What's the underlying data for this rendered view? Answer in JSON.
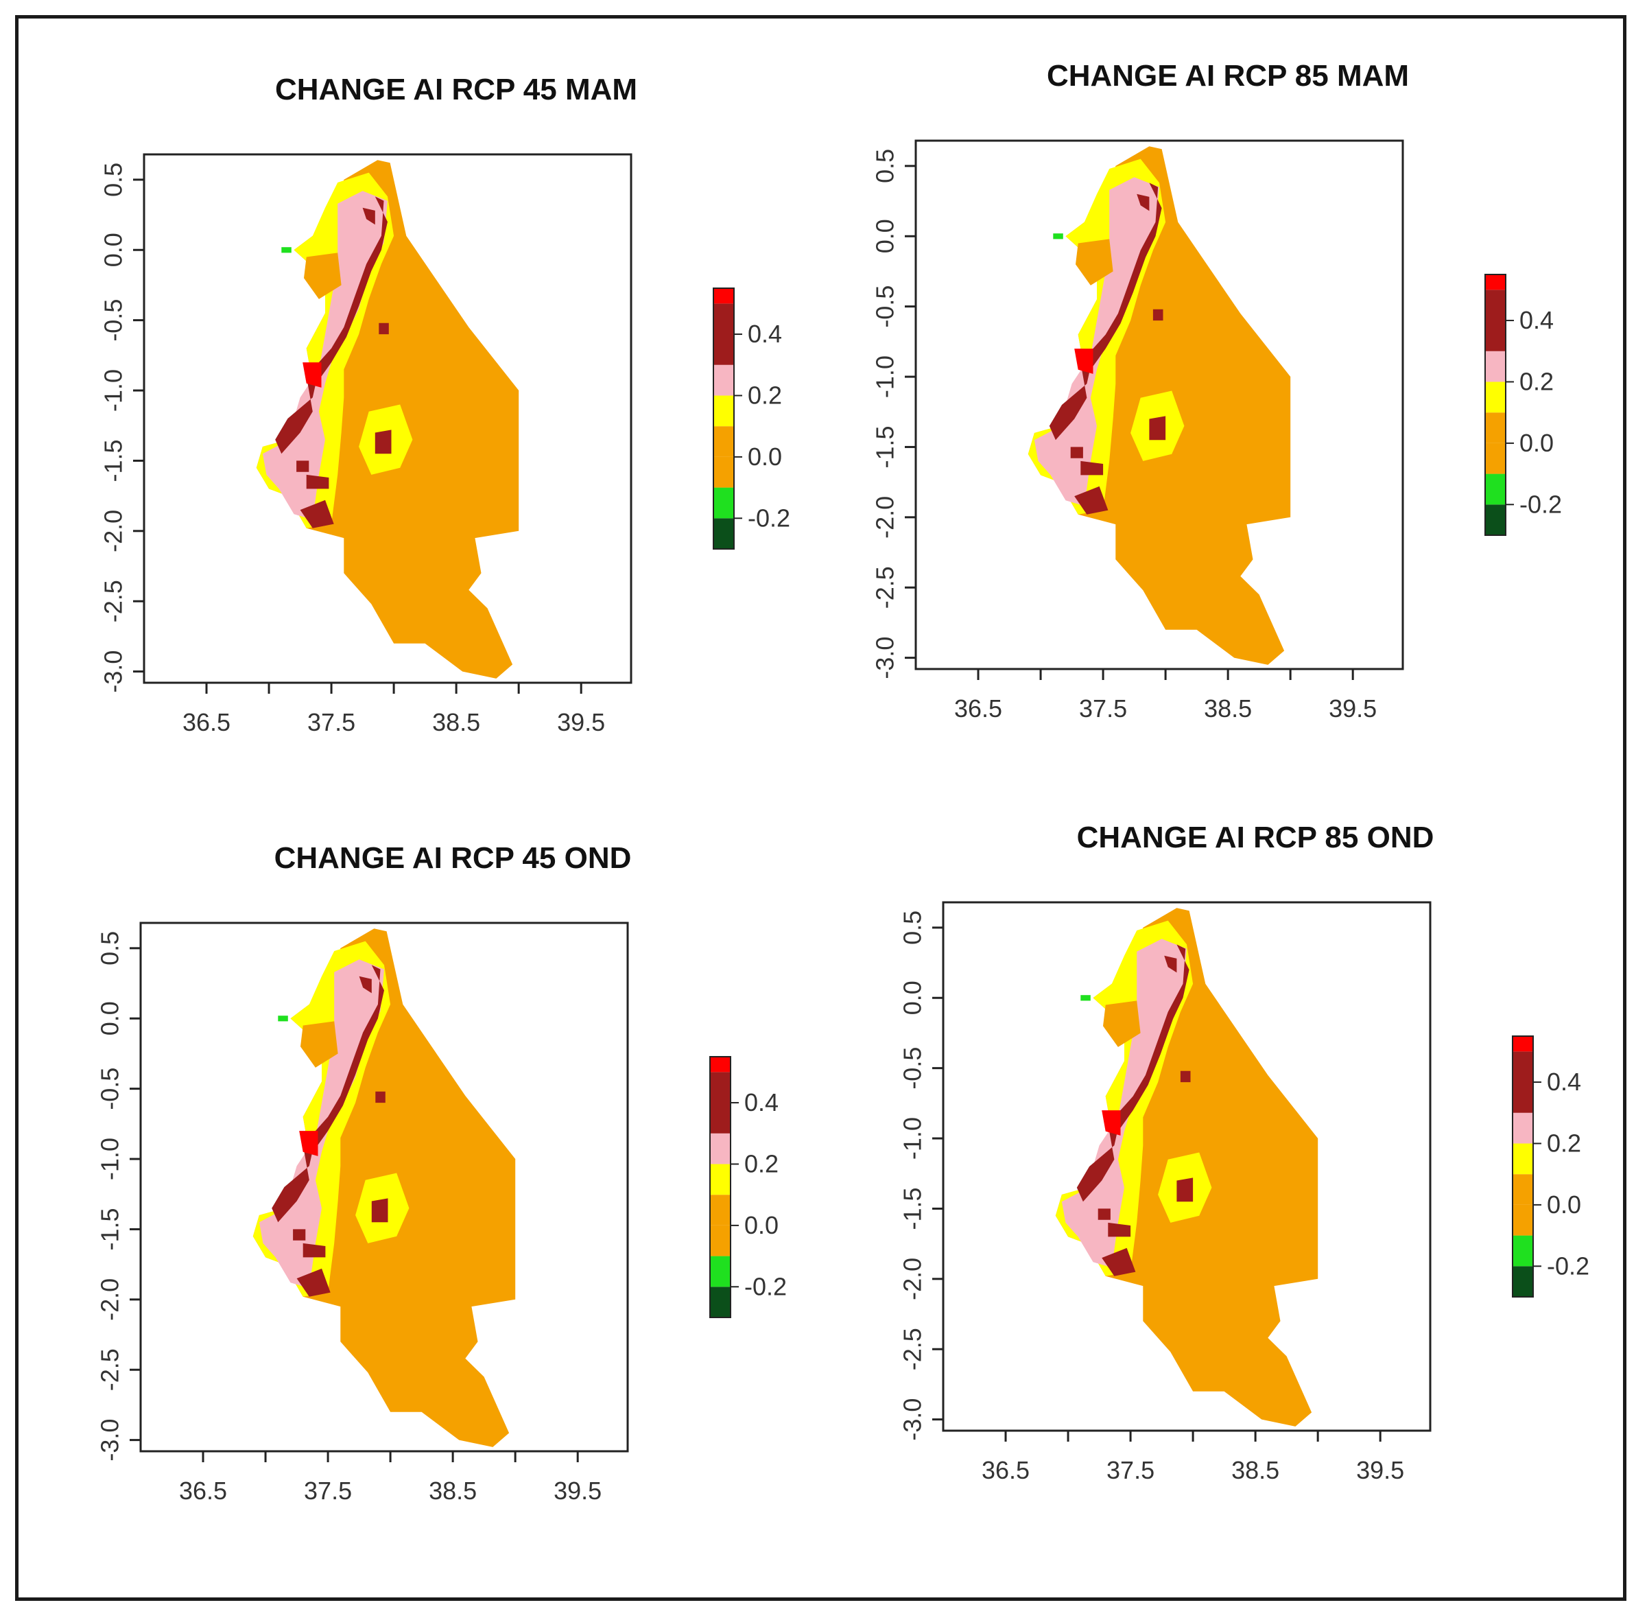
{
  "figure": {
    "colors": {
      "dark_green": "#0b4f1a",
      "green": "#1fe01f",
      "orange": "#f5a100",
      "yellow": "#ffff00",
      "pink": "#f7b6c2",
      "dark_red": "#9e1c1c",
      "red": "#ff0000"
    }
  },
  "chart_data": [
    {
      "type": "map",
      "title": "CHANGE AI RCP 45 MAM",
      "x_ticks": [
        "36.5",
        "37.5",
        "38.5",
        "39.5"
      ],
      "y_ticks": [
        "0.5",
        "0.0",
        "-0.5",
        "-1.0",
        "-1.5",
        "-2.0",
        "-2.5",
        "-3.0"
      ],
      "legend": {
        "labels": [
          "0.4",
          "0.2",
          "0.0",
          "-0.2"
        ],
        "class_breaks": [
          -0.3,
          -0.2,
          -0.1,
          0.0,
          0.1,
          0.2,
          0.3,
          0.5,
          0.55
        ]
      }
    },
    {
      "type": "map",
      "title": "CHANGE AI RCP 85 MAM",
      "x_ticks": [
        "36.5",
        "37.5",
        "38.5",
        "39.5"
      ],
      "y_ticks": [
        "0.5",
        "0.0",
        "-0.5",
        "-1.0",
        "-1.5",
        "-2.0",
        "-2.5",
        "-3.0"
      ],
      "legend": {
        "labels": [
          "0.4",
          "0.2",
          "0.0",
          "-0.2"
        ],
        "class_breaks": [
          -0.3,
          -0.2,
          -0.1,
          0.0,
          0.1,
          0.2,
          0.3,
          0.5,
          0.55
        ]
      }
    },
    {
      "type": "map",
      "title": "CHANGE AI RCP 45 OND",
      "x_ticks": [
        "36.5",
        "37.5",
        "38.5",
        "39.5"
      ],
      "y_ticks": [
        "0.5",
        "0.0",
        "-0.5",
        "-1.0",
        "-1.5",
        "-2.0",
        "-2.5",
        "-3.0"
      ],
      "legend": {
        "labels": [
          "0.4",
          "0.2",
          "0.0",
          "-0.2"
        ],
        "class_breaks": [
          -0.3,
          -0.2,
          -0.1,
          0.0,
          0.1,
          0.2,
          0.3,
          0.5,
          0.55
        ]
      }
    },
    {
      "type": "map",
      "title": "CHANGE AI RCP 85 OND",
      "x_ticks": [
        "36.5",
        "37.5",
        "38.5",
        "39.5"
      ],
      "y_ticks": [
        "0.5",
        "0.0",
        "-0.5",
        "-1.0",
        "-1.5",
        "-2.0",
        "-2.5",
        "-3.0"
      ],
      "legend": {
        "labels": [
          "0.4",
          "0.2",
          "0.0",
          "-0.2"
        ],
        "class_breaks": [
          -0.3,
          -0.2,
          -0.1,
          0.0,
          0.1,
          0.2,
          0.3,
          0.5,
          0.55
        ]
      }
    }
  ]
}
